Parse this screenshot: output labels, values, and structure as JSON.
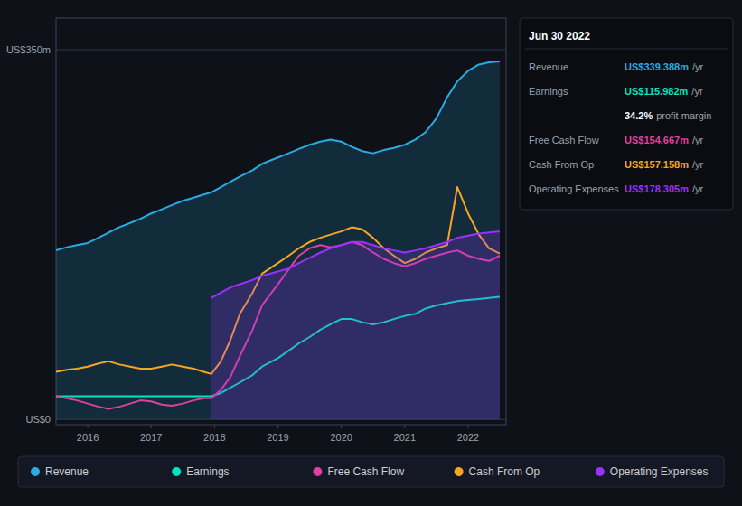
{
  "chart_data": {
    "type": "line",
    "x": [
      2015.5,
      2015.67,
      2015.83,
      2016.0,
      2016.17,
      2016.33,
      2016.5,
      2016.67,
      2016.83,
      2017.0,
      2017.17,
      2017.33,
      2017.5,
      2017.67,
      2017.83,
      2017.95,
      2018.1,
      2018.25,
      2018.4,
      2018.6,
      2018.75,
      2019.0,
      2019.17,
      2019.33,
      2019.5,
      2019.67,
      2019.83,
      2020.0,
      2020.17,
      2020.33,
      2020.5,
      2020.67,
      2020.83,
      2021.0,
      2021.17,
      2021.33,
      2021.5,
      2021.67,
      2021.83,
      2022.0,
      2022.17,
      2022.33,
      2022.5
    ],
    "series": [
      {
        "name": "Revenue",
        "color": "#29abe2",
        "type": "area",
        "values": [
          160,
          163,
          165,
          167,
          172,
          177,
          182,
          186,
          190,
          195,
          199,
          203,
          207,
          210,
          213,
          215,
          220,
          225,
          230,
          236,
          242,
          248,
          252,
          256,
          260,
          263,
          265,
          263,
          258,
          254,
          252,
          255,
          257,
          260,
          265,
          272,
          285,
          305,
          320,
          330,
          336,
          338,
          339
        ]
      },
      {
        "name": "Earnings",
        "color": "#00e5c0",
        "type": "line",
        "values": [
          22,
          22,
          22,
          22,
          22,
          22,
          22,
          22,
          22,
          22,
          22,
          22,
          22,
          22,
          22,
          22,
          25,
          30,
          35,
          42,
          50,
          58,
          65,
          72,
          78,
          85,
          90,
          95,
          95,
          92,
          90,
          92,
          95,
          98,
          100,
          105,
          108,
          110,
          112,
          113,
          114,
          115,
          116
        ]
      },
      {
        "name": "Free Cash Flow",
        "color": "#e040a0",
        "type": "line",
        "values": [
          22,
          20,
          18,
          15,
          12,
          10,
          12,
          15,
          18,
          17,
          14,
          13,
          15,
          18,
          20,
          20,
          28,
          40,
          60,
          85,
          108,
          128,
          142,
          155,
          162,
          165,
          163,
          165,
          168,
          165,
          158,
          152,
          148,
          145,
          148,
          152,
          155,
          158,
          160,
          155,
          152,
          150,
          155
        ]
      },
      {
        "name": "Cash From Op",
        "color": "#f5a623",
        "type": "line",
        "values": [
          45,
          47,
          48,
          50,
          53,
          55,
          52,
          50,
          48,
          48,
          50,
          52,
          50,
          48,
          45,
          43,
          55,
          75,
          100,
          120,
          138,
          148,
          155,
          162,
          168,
          172,
          175,
          178,
          182,
          180,
          172,
          162,
          155,
          148,
          152,
          158,
          162,
          165,
          220,
          195,
          175,
          162,
          157
        ]
      },
      {
        "name": "Operating Expenses",
        "color": "#9b30ff",
        "type": "area",
        "values": [
          null,
          null,
          null,
          null,
          null,
          null,
          null,
          null,
          null,
          null,
          null,
          null,
          null,
          null,
          null,
          115,
          120,
          125,
          128,
          132,
          136,
          140,
          143,
          148,
          153,
          158,
          162,
          165,
          168,
          168,
          165,
          162,
          160,
          158,
          160,
          162,
          165,
          168,
          172,
          174,
          176,
          177,
          178
        ]
      }
    ],
    "xlim": [
      2015.5,
      2022.6
    ],
    "xticks": [
      2016,
      2017,
      2018,
      2019,
      2020,
      2021,
      2022
    ],
    "ylim": [
      -5,
      380
    ],
    "yticks": [
      {
        "value": 0,
        "label": "US$0"
      },
      {
        "value": 350,
        "label": "US$350m"
      }
    ],
    "grid": true,
    "legend": "bottom",
    "annotations": [
      {
        "text": "Jun 30 2022"
      },
      {
        "label": "Revenue",
        "text": "US$339.388m",
        "unit": "/yr",
        "color": "#29abe2"
      },
      {
        "label": "Earnings",
        "text": "US$115.982m",
        "unit": "/yr",
        "color": "#00e5c0"
      },
      {
        "text": "34.2%",
        "unit": "profit margin",
        "color": "#ffffff"
      },
      {
        "label": "Free Cash Flow",
        "text": "US$154.667m",
        "unit": "/yr",
        "color": "#e040a0"
      },
      {
        "label": "Cash From Op",
        "text": "US$157.158m",
        "unit": "/yr",
        "color": "#f5a623"
      },
      {
        "label": "Operating Expenses",
        "text": "US$178.305m",
        "unit": "/yr",
        "color": "#9b30ff"
      }
    ]
  }
}
